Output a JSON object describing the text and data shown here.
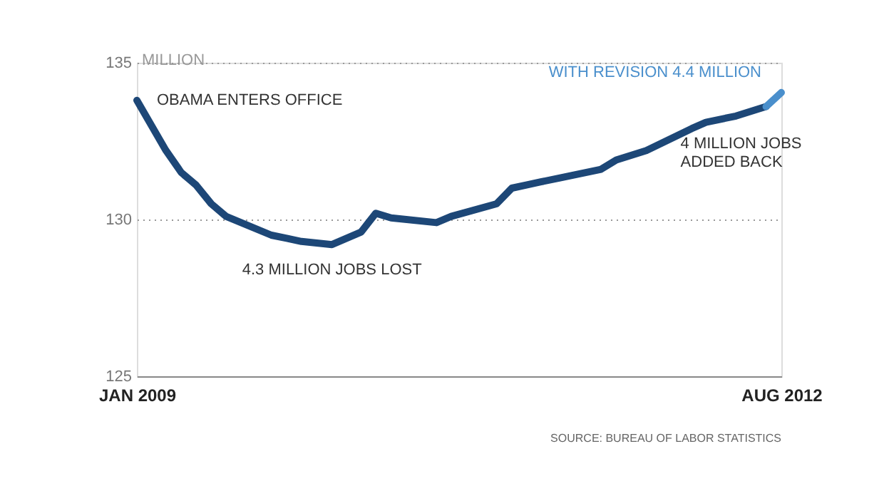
{
  "chart_data": {
    "type": "line",
    "ylabel": "MILLION",
    "xlim": [
      "2009-01",
      "2012-08"
    ],
    "xticks": [
      {
        "value": "2009-01",
        "label": "JAN 2009"
      },
      {
        "value": "2012-08",
        "label": "AUG 2012"
      }
    ],
    "ylim": [
      125,
      135
    ],
    "yticks": [
      125,
      130,
      135
    ],
    "grid": "y",
    "line_style": "solid",
    "marker": "none",
    "series": [
      {
        "color": "#1d4777",
        "x": [
          "2009-01",
          "2009-03",
          "2009-04",
          "2009-05",
          "2009-06",
          "2009-07",
          "2009-10",
          "2009-11",
          "2009-12",
          "2010-02",
          "2010-04",
          "2010-05",
          "2010-06",
          "2010-09",
          "2010-10",
          "2011-01",
          "2011-02",
          "2011-04",
          "2011-08",
          "2011-09",
          "2011-11",
          "2012-02",
          "2012-03",
          "2012-05",
          "2012-07"
        ],
        "values": [
          133.8,
          132.2,
          131.5,
          131.1,
          130.5,
          130.1,
          129.5,
          129.4,
          129.3,
          129.2,
          129.6,
          130.2,
          130.05,
          129.9,
          130.1,
          130.5,
          131.0,
          131.2,
          131.6,
          131.9,
          132.2,
          132.9,
          133.1,
          133.3,
          133.6
        ]
      },
      {
        "color": "#4a8fcc",
        "x": [
          "2012-07",
          "2012-08"
        ],
        "values": [
          133.6,
          134.05
        ]
      }
    ],
    "annotations": [
      {
        "text": "OBAMA ENTERS OFFICE",
        "x": "2009-01",
        "y": 133.8
      },
      {
        "text": "4.3 MILLION JOBS LOST",
        "x": "2010-02",
        "y": 129.2
      },
      {
        "text": "4 MILLION JOBS\nADDED BACK",
        "x": "2012-07",
        "y": 133.6
      },
      {
        "text": "WITH REVISION 4.4 MILLION",
        "x": "2012-08",
        "y": 134.05
      },
      "SOURCE: BUREAU OF LABOR STATISTICS"
    ]
  }
}
